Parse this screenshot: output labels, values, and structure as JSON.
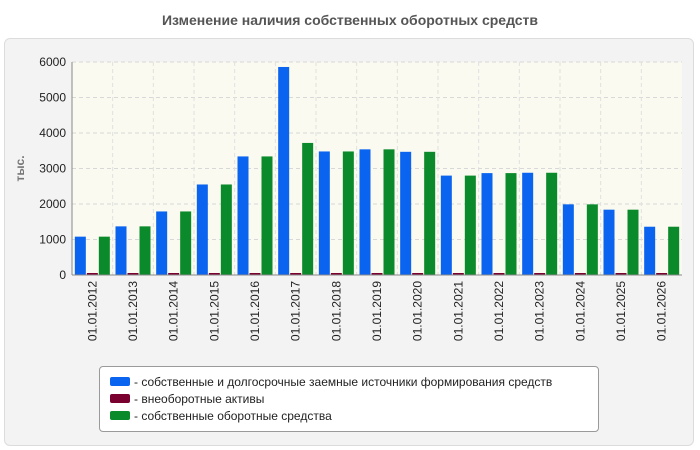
{
  "chart_data": {
    "type": "bar",
    "title": "Изменение наличия собственных оборотных средств",
    "ylabel": "тыс.",
    "xlabel": "",
    "ylim": [
      0,
      6000
    ],
    "yticks": [
      0,
      1000,
      2000,
      3000,
      4000,
      5000,
      6000
    ],
    "grid": true,
    "legend_position": "bottom",
    "categories": [
      "01.01.2012",
      "01.01.2013",
      "01.01.2014",
      "01.01.2015",
      "01.01.2016",
      "01.01.2017",
      "01.01.2018",
      "01.01.2019",
      "01.01.2020",
      "01.01.2021",
      "01.01.2022",
      "01.01.2023",
      "01.01.2024",
      "01.01.2025",
      "01.01.2026"
    ],
    "series": [
      {
        "name": "собственные и долгосрочные заемные источники формирования средств",
        "color": "#0a64f0",
        "values": [
          1080,
          1370,
          1790,
          2550,
          3340,
          5860,
          3480,
          3540,
          3470,
          2800,
          2870,
          2880,
          1990,
          1840,
          1360
        ]
      },
      {
        "name": "внеоборотные активы",
        "color": "#7a0030",
        "values": [
          0,
          0,
          0,
          0,
          0,
          0,
          0,
          0,
          0,
          0,
          0,
          0,
          0,
          0,
          0
        ]
      },
      {
        "name": "собственные оборотные средства",
        "color": "#0a8a2a",
        "values": [
          1080,
          1370,
          1790,
          2550,
          3340,
          3720,
          3480,
          3540,
          3470,
          2800,
          2870,
          2880,
          1990,
          1840,
          1360
        ]
      }
    ]
  }
}
